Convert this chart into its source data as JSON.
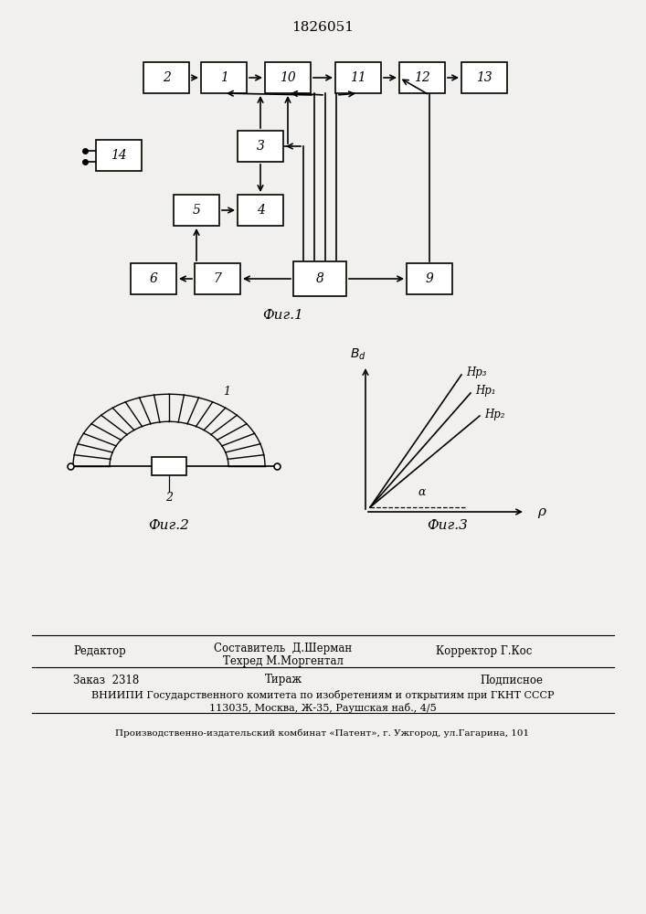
{
  "title": "1826051",
  "bg_color": "#f2f0ec",
  "fig1_label": "Фиг.1",
  "fig2_label": "Фиг.2",
  "fig3_label": "Фиг.3",
  "footer_line1": "Составитель  Д.Шерман",
  "footer_line2": "Техред М.Моргентал",
  "footer_corr": "Корректор Г.Кос",
  "footer_editor": "Редактор",
  "footer_order": "Заказ  2318",
  "footer_tirazh": "Тираж",
  "footer_podp": "Подписное",
  "footer_vniip": "ВНИИПИ Государственного комитета по изобретениям и открытиям при ГКНТ СССР",
  "footer_addr": "113035, Москва, Ж-35, Раушская наб., 4/5",
  "footer_prod": "Производственно-издательский комбинат «Патент», г. Ужгород, ул.Гагарина, 101"
}
